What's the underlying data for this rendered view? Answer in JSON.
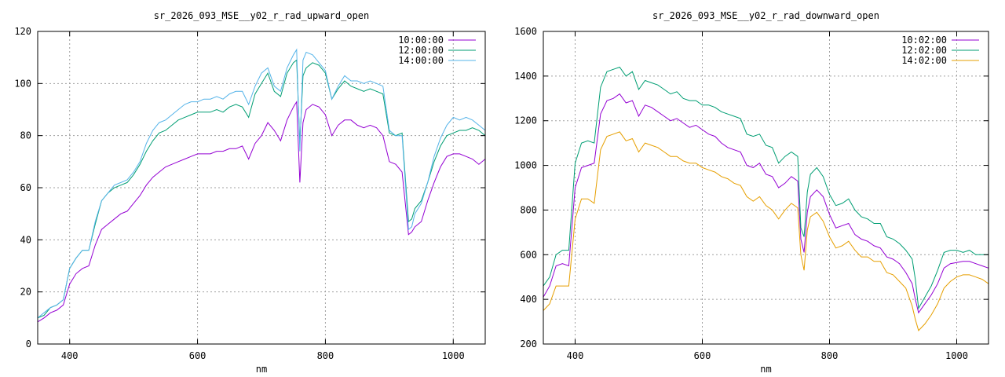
{
  "chart_data": [
    {
      "type": "line",
      "title": "sr_2026_093_MSE__y02_r_rad_upward_open",
      "xlabel": "nm",
      "ylabel": "",
      "xlim": [
        350,
        1050
      ],
      "ylim": [
        0,
        120
      ],
      "xticks": [
        400,
        600,
        800,
        1000
      ],
      "yticks": [
        0,
        20,
        40,
        60,
        80,
        100,
        120
      ],
      "grid": true,
      "legend_position": "top-right",
      "x": [
        350,
        360,
        370,
        380,
        390,
        400,
        410,
        420,
        430,
        440,
        450,
        460,
        470,
        480,
        490,
        500,
        510,
        520,
        530,
        540,
        550,
        560,
        570,
        580,
        590,
        600,
        610,
        620,
        630,
        640,
        650,
        660,
        670,
        680,
        690,
        700,
        710,
        720,
        730,
        740,
        750,
        755,
        760,
        765,
        770,
        780,
        790,
        800,
        810,
        820,
        830,
        840,
        850,
        860,
        870,
        880,
        890,
        900,
        910,
        920,
        930,
        935,
        940,
        950,
        960,
        970,
        980,
        990,
        1000,
        1010,
        1020,
        1030,
        1040,
        1050
      ],
      "series": [
        {
          "name": "10:00:00",
          "color": "#9400d3",
          "values": [
            8.5,
            10,
            12,
            13,
            15,
            23,
            27,
            29,
            30,
            38,
            44,
            46,
            48,
            50,
            51,
            54,
            57,
            61,
            64,
            66,
            68,
            69,
            70,
            71,
            72,
            73,
            73,
            73,
            74,
            74,
            75,
            75,
            76,
            71,
            77,
            80,
            85,
            82,
            78,
            86,
            91,
            93,
            62,
            85,
            90,
            92,
            91,
            88,
            80,
            84,
            86,
            86,
            84,
            83,
            84,
            83,
            80,
            70,
            69,
            66,
            42,
            43,
            45,
            47,
            55,
            62,
            68,
            72,
            73,
            73,
            72,
            71,
            69,
            71
          ]
        },
        {
          "name": "12:00:00",
          "color": "#009e73",
          "values": [
            10,
            11,
            14,
            15,
            17,
            29,
            33,
            36,
            36,
            46,
            55,
            58,
            60,
            61,
            62,
            65,
            69,
            74,
            78,
            81,
            82,
            84,
            86,
            87,
            88,
            89,
            89,
            89,
            90,
            89,
            91,
            92,
            91,
            87,
            96,
            100,
            104,
            97,
            95,
            104,
            108,
            109,
            77,
            103,
            106,
            108,
            107,
            104,
            94,
            98,
            101,
            99,
            98,
            97,
            98,
            97,
            96,
            81,
            80,
            81,
            47,
            48,
            52,
            55,
            62,
            70,
            76,
            80,
            81,
            82,
            82,
            83,
            82,
            80
          ]
        },
        {
          "name": "14:00:00",
          "color": "#56b4e9",
          "values": [
            10,
            12,
            14,
            15,
            17,
            29,
            33,
            36,
            36,
            47,
            55,
            58,
            61,
            62,
            63,
            66,
            70,
            77,
            82,
            85,
            86,
            88,
            90,
            92,
            93,
            93,
            94,
            94,
            95,
            94,
            96,
            97,
            97,
            92,
            99,
            104,
            106,
            99,
            97,
            106,
            111,
            113,
            74,
            109,
            112,
            111,
            108,
            105,
            94,
            99,
            103,
            101,
            101,
            100,
            101,
            100,
            99,
            82,
            80,
            80,
            44,
            45,
            50,
            54,
            62,
            72,
            79,
            84,
            87,
            86,
            87,
            86,
            84,
            82
          ]
        }
      ]
    },
    {
      "type": "line",
      "title": "sr_2026_093_MSE__y02_r_rad_downward_open",
      "xlabel": "nm",
      "ylabel": "",
      "xlim": [
        350,
        1050
      ],
      "ylim": [
        200,
        1600
      ],
      "xticks": [
        400,
        600,
        800,
        1000
      ],
      "yticks": [
        200,
        400,
        600,
        800,
        1000,
        1200,
        1400,
        1600
      ],
      "grid": true,
      "legend_position": "top-right",
      "x": [
        350,
        360,
        370,
        380,
        390,
        400,
        410,
        420,
        430,
        440,
        450,
        460,
        470,
        480,
        490,
        500,
        510,
        520,
        530,
        540,
        550,
        560,
        570,
        580,
        590,
        600,
        610,
        620,
        630,
        640,
        650,
        660,
        670,
        680,
        690,
        700,
        710,
        720,
        730,
        740,
        750,
        755,
        760,
        765,
        770,
        780,
        790,
        800,
        810,
        820,
        830,
        840,
        850,
        860,
        870,
        880,
        890,
        900,
        910,
        920,
        930,
        935,
        940,
        950,
        960,
        970,
        980,
        990,
        1000,
        1010,
        1020,
        1030,
        1040,
        1050
      ],
      "series": [
        {
          "name": "10:02:00",
          "color": "#9400d3",
          "values": [
            410,
            460,
            550,
            560,
            550,
            900,
            990,
            1000,
            1010,
            1230,
            1290,
            1300,
            1320,
            1280,
            1290,
            1220,
            1270,
            1260,
            1240,
            1220,
            1200,
            1210,
            1190,
            1170,
            1180,
            1160,
            1140,
            1130,
            1100,
            1080,
            1070,
            1060,
            1000,
            990,
            1010,
            960,
            950,
            900,
            920,
            950,
            930,
            670,
            610,
            790,
            860,
            890,
            860,
            780,
            720,
            730,
            740,
            690,
            670,
            660,
            640,
            630,
            590,
            580,
            560,
            520,
            470,
            400,
            340,
            380,
            420,
            470,
            540,
            560,
            565,
            570,
            570,
            560,
            550,
            540
          ]
        },
        {
          "name": "12:02:00",
          "color": "#009e73",
          "values": [
            460,
            500,
            600,
            620,
            620,
            1010,
            1100,
            1110,
            1100,
            1350,
            1420,
            1430,
            1440,
            1400,
            1420,
            1340,
            1380,
            1370,
            1360,
            1340,
            1320,
            1330,
            1300,
            1290,
            1290,
            1270,
            1270,
            1260,
            1240,
            1230,
            1220,
            1210,
            1140,
            1130,
            1140,
            1090,
            1080,
            1010,
            1040,
            1060,
            1040,
            720,
            680,
            880,
            960,
            990,
            950,
            870,
            820,
            830,
            850,
            800,
            770,
            760,
            740,
            740,
            680,
            670,
            650,
            620,
            580,
            490,
            360,
            410,
            460,
            530,
            610,
            620,
            620,
            610,
            620,
            600,
            600,
            600
          ]
        },
        {
          "name": "14:02:00",
          "color": "#e69f00",
          "values": [
            350,
            380,
            460,
            460,
            460,
            760,
            850,
            850,
            830,
            1070,
            1130,
            1140,
            1150,
            1110,
            1120,
            1060,
            1100,
            1090,
            1080,
            1060,
            1040,
            1040,
            1020,
            1010,
            1010,
            990,
            980,
            970,
            950,
            940,
            920,
            910,
            860,
            840,
            860,
            820,
            800,
            760,
            800,
            830,
            810,
            600,
            530,
            710,
            770,
            790,
            750,
            680,
            630,
            640,
            660,
            620,
            590,
            590,
            570,
            570,
            520,
            510,
            480,
            450,
            370,
            310,
            260,
            290,
            330,
            380,
            450,
            480,
            500,
            510,
            510,
            500,
            490,
            470
          ]
        }
      ]
    }
  ]
}
